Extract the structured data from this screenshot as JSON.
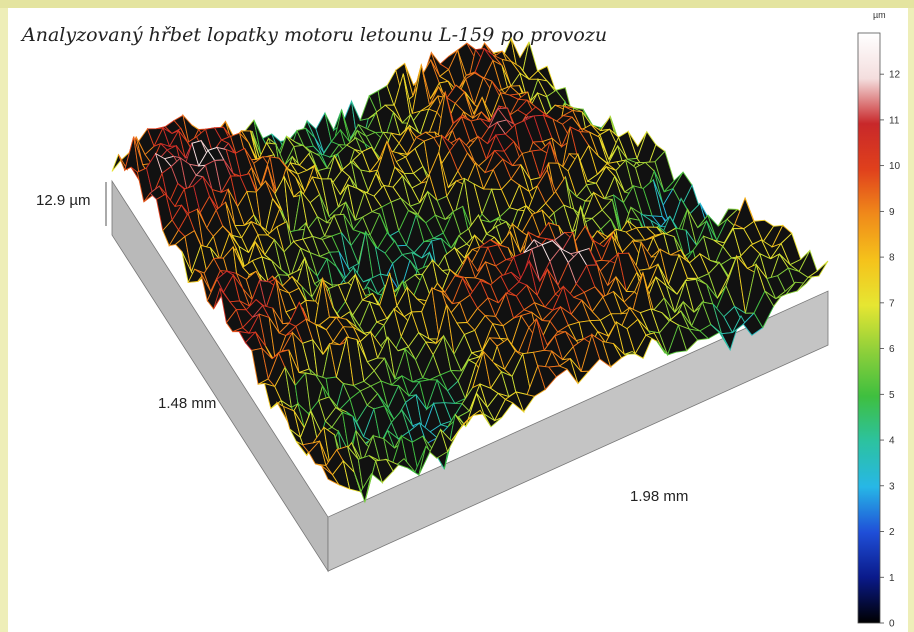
{
  "title": "Analyzovaný hřbet lopatky motoru letounu L-159 po provozu",
  "chart_data": {
    "type": "heatmap",
    "z_label": "12.9 µm",
    "y_label": "1.48 mm",
    "x_label": "1.98 mm",
    "colorbar": {
      "unit": "µm",
      "ticks": [
        "0",
        "1",
        "2",
        "3",
        "4",
        "5",
        "6",
        "7",
        "8",
        "9",
        "10",
        "11",
        "12"
      ],
      "range": [
        0,
        12.9
      ],
      "colors": [
        "#000000",
        "#0a1a8a",
        "#1f4fd8",
        "#27b7e6",
        "#2cc2a0",
        "#3fbf3f",
        "#8fd03a",
        "#e6e632",
        "#f5c21b",
        "#f08a1a",
        "#e0401c",
        "#c8282a",
        "#f4dede",
        "#ffffff"
      ]
    }
  }
}
